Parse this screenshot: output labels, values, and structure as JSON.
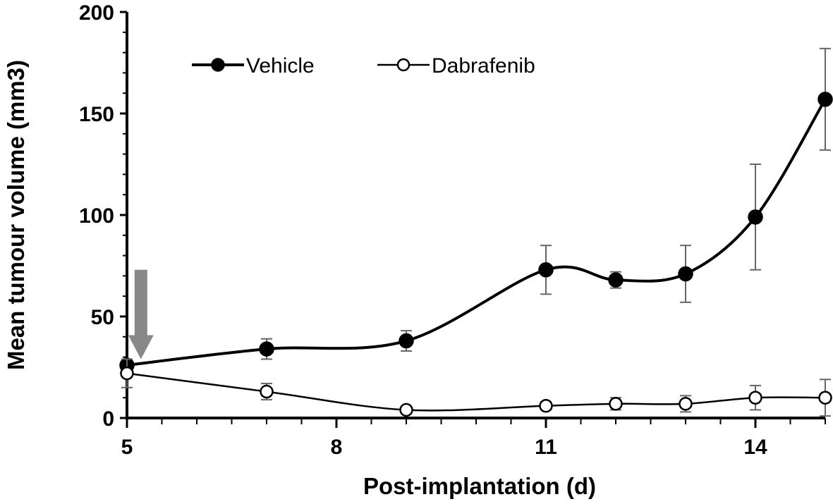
{
  "chart_data": {
    "type": "line",
    "title": "",
    "xlabel": "Post-implantation (d)",
    "ylabel": "Mean tumour volume (mm3)",
    "xlim": [
      5,
      15
    ],
    "ylim": [
      0,
      200
    ],
    "x_ticks": [
      5,
      8,
      11,
      14
    ],
    "y_ticks": [
      0,
      50,
      100,
      150,
      200
    ],
    "smooth": true,
    "grid": false,
    "legend_position": "top-left",
    "series": [
      {
        "name": "Vehicle",
        "marker": "filled-circle",
        "color": "#000000",
        "x": [
          5,
          7,
          9,
          11,
          12,
          13,
          14,
          15
        ],
        "y": [
          26,
          34,
          38,
          73,
          68,
          71,
          99,
          157
        ],
        "error": [
          3,
          5,
          5,
          12,
          4,
          14,
          26,
          25
        ]
      },
      {
        "name": "Dabrafenib",
        "marker": "open-circle",
        "color": "#000000",
        "x": [
          5,
          7,
          9,
          11,
          12,
          13,
          14,
          15
        ],
        "y": [
          22,
          13,
          4,
          6,
          7,
          7,
          10,
          10
        ],
        "error": [
          7,
          4,
          1,
          2,
          3,
          4,
          6,
          9
        ]
      }
    ],
    "annotations": [
      {
        "type": "arrow",
        "direction": "down",
        "color": "#888888",
        "at_x": 5.2,
        "from_y": 73,
        "to_y": 29
      }
    ]
  }
}
